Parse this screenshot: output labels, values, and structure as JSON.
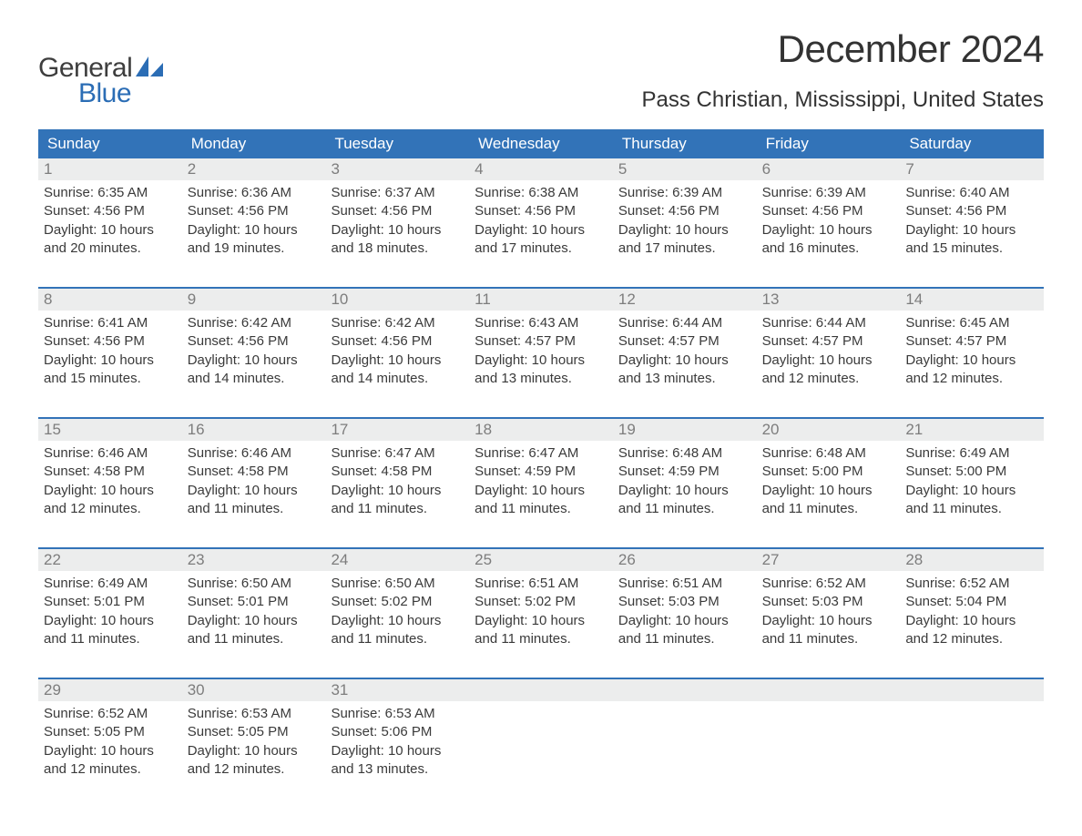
{
  "brand": {
    "word1": "General",
    "word2": "Blue",
    "accent_color": "#2b6db5"
  },
  "title": "December 2024",
  "location": "Pass Christian, Mississippi, United States",
  "colors": {
    "header_bg": "#3273b8",
    "header_text": "#ffffff",
    "daynum_bg": "#eceded",
    "daynum_text": "#7d7d7d",
    "body_text": "#3a3a3a",
    "week_border": "#3273b8",
    "page_bg": "#ffffff"
  },
  "day_headers": [
    "Sunday",
    "Monday",
    "Tuesday",
    "Wednesday",
    "Thursday",
    "Friday",
    "Saturday"
  ],
  "weeks": [
    [
      {
        "n": "1",
        "sr": "6:35 AM",
        "ss": "4:56 PM",
        "dh": "10",
        "dm": "20"
      },
      {
        "n": "2",
        "sr": "6:36 AM",
        "ss": "4:56 PM",
        "dh": "10",
        "dm": "19"
      },
      {
        "n": "3",
        "sr": "6:37 AM",
        "ss": "4:56 PM",
        "dh": "10",
        "dm": "18"
      },
      {
        "n": "4",
        "sr": "6:38 AM",
        "ss": "4:56 PM",
        "dh": "10",
        "dm": "17"
      },
      {
        "n": "5",
        "sr": "6:39 AM",
        "ss": "4:56 PM",
        "dh": "10",
        "dm": "17"
      },
      {
        "n": "6",
        "sr": "6:39 AM",
        "ss": "4:56 PM",
        "dh": "10",
        "dm": "16"
      },
      {
        "n": "7",
        "sr": "6:40 AM",
        "ss": "4:56 PM",
        "dh": "10",
        "dm": "15"
      }
    ],
    [
      {
        "n": "8",
        "sr": "6:41 AM",
        "ss": "4:56 PM",
        "dh": "10",
        "dm": "15"
      },
      {
        "n": "9",
        "sr": "6:42 AM",
        "ss": "4:56 PM",
        "dh": "10",
        "dm": "14"
      },
      {
        "n": "10",
        "sr": "6:42 AM",
        "ss": "4:56 PM",
        "dh": "10",
        "dm": "14"
      },
      {
        "n": "11",
        "sr": "6:43 AM",
        "ss": "4:57 PM",
        "dh": "10",
        "dm": "13"
      },
      {
        "n": "12",
        "sr": "6:44 AM",
        "ss": "4:57 PM",
        "dh": "10",
        "dm": "13"
      },
      {
        "n": "13",
        "sr": "6:44 AM",
        "ss": "4:57 PM",
        "dh": "10",
        "dm": "12"
      },
      {
        "n": "14",
        "sr": "6:45 AM",
        "ss": "4:57 PM",
        "dh": "10",
        "dm": "12"
      }
    ],
    [
      {
        "n": "15",
        "sr": "6:46 AM",
        "ss": "4:58 PM",
        "dh": "10",
        "dm": "12"
      },
      {
        "n": "16",
        "sr": "6:46 AM",
        "ss": "4:58 PM",
        "dh": "10",
        "dm": "11"
      },
      {
        "n": "17",
        "sr": "6:47 AM",
        "ss": "4:58 PM",
        "dh": "10",
        "dm": "11"
      },
      {
        "n": "18",
        "sr": "6:47 AM",
        "ss": "4:59 PM",
        "dh": "10",
        "dm": "11"
      },
      {
        "n": "19",
        "sr": "6:48 AM",
        "ss": "4:59 PM",
        "dh": "10",
        "dm": "11"
      },
      {
        "n": "20",
        "sr": "6:48 AM",
        "ss": "5:00 PM",
        "dh": "10",
        "dm": "11"
      },
      {
        "n": "21",
        "sr": "6:49 AM",
        "ss": "5:00 PM",
        "dh": "10",
        "dm": "11"
      }
    ],
    [
      {
        "n": "22",
        "sr": "6:49 AM",
        "ss": "5:01 PM",
        "dh": "10",
        "dm": "11"
      },
      {
        "n": "23",
        "sr": "6:50 AM",
        "ss": "5:01 PM",
        "dh": "10",
        "dm": "11"
      },
      {
        "n": "24",
        "sr": "6:50 AM",
        "ss": "5:02 PM",
        "dh": "10",
        "dm": "11"
      },
      {
        "n": "25",
        "sr": "6:51 AM",
        "ss": "5:02 PM",
        "dh": "10",
        "dm": "11"
      },
      {
        "n": "26",
        "sr": "6:51 AM",
        "ss": "5:03 PM",
        "dh": "10",
        "dm": "11"
      },
      {
        "n": "27",
        "sr": "6:52 AM",
        "ss": "5:03 PM",
        "dh": "10",
        "dm": "11"
      },
      {
        "n": "28",
        "sr": "6:52 AM",
        "ss": "5:04 PM",
        "dh": "10",
        "dm": "12"
      }
    ],
    [
      {
        "n": "29",
        "sr": "6:52 AM",
        "ss": "5:05 PM",
        "dh": "10",
        "dm": "12"
      },
      {
        "n": "30",
        "sr": "6:53 AM",
        "ss": "5:05 PM",
        "dh": "10",
        "dm": "12"
      },
      {
        "n": "31",
        "sr": "6:53 AM",
        "ss": "5:06 PM",
        "dh": "10",
        "dm": "13"
      },
      null,
      null,
      null,
      null
    ]
  ],
  "labels": {
    "sunrise": "Sunrise:",
    "sunset": "Sunset:",
    "daylight_prefix": "Daylight:",
    "hours_word": "hours",
    "and_word": "and",
    "minutes_word": "minutes."
  }
}
